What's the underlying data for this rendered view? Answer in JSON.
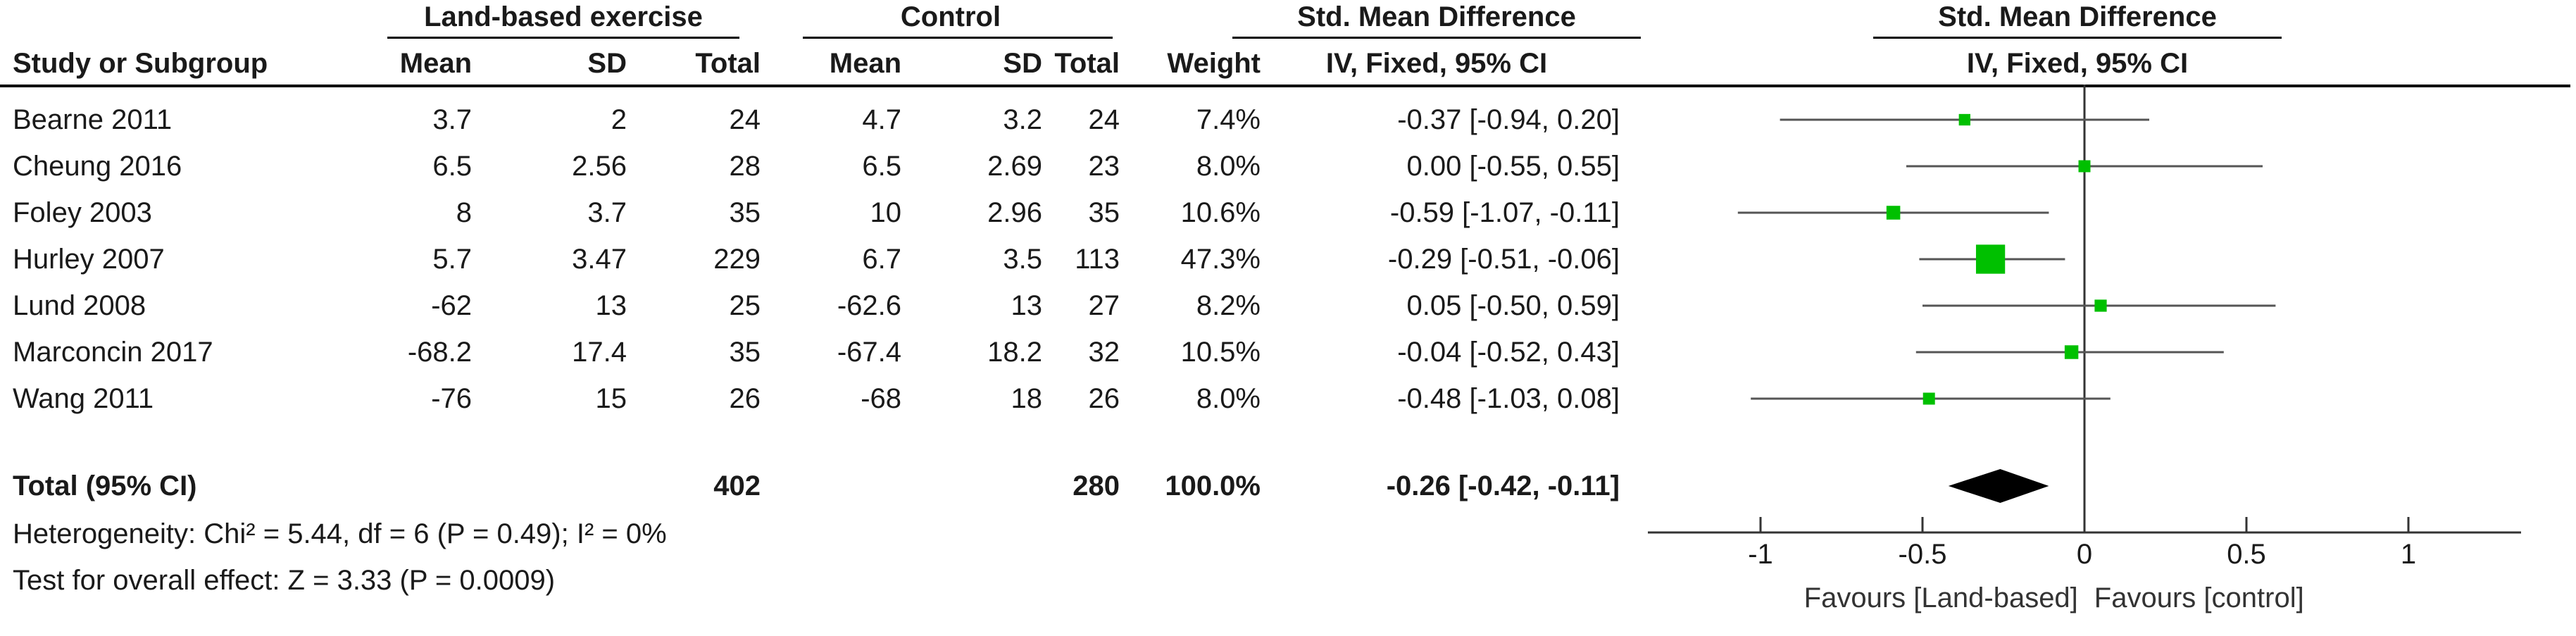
{
  "headers": {
    "exp_group": "Land-based exercise",
    "ctrl_group": "Control",
    "effect_left_title": "Std. Mean Difference",
    "effect_left_method": "IV, Fixed, 95% CI",
    "plot_title": "Std. Mean Difference",
    "plot_method": "IV, Fixed, 95% CI",
    "study": "Study or Subgroup",
    "mean": "Mean",
    "sd": "SD",
    "total": "Total",
    "weight": "Weight"
  },
  "studies": [
    {
      "name": "Bearne 2011",
      "exp_mean": "3.7",
      "exp_sd": "2",
      "exp_total": "24",
      "ctrl_mean": "4.7",
      "ctrl_sd": "3.2",
      "ctrl_total": "24",
      "weight": "7.4%",
      "ci_text": "-0.37 [-0.94, 0.20]"
    },
    {
      "name": "Cheung 2016",
      "exp_mean": "6.5",
      "exp_sd": "2.56",
      "exp_total": "28",
      "ctrl_mean": "6.5",
      "ctrl_sd": "2.69",
      "ctrl_total": "23",
      "weight": "8.0%",
      "ci_text": "0.00 [-0.55, 0.55]"
    },
    {
      "name": "Foley 2003",
      "exp_mean": "8",
      "exp_sd": "3.7",
      "exp_total": "35",
      "ctrl_mean": "10",
      "ctrl_sd": "2.96",
      "ctrl_total": "35",
      "weight": "10.6%",
      "ci_text": "-0.59 [-1.07, -0.11]"
    },
    {
      "name": "Hurley 2007",
      "exp_mean": "5.7",
      "exp_sd": "3.47",
      "exp_total": "229",
      "ctrl_mean": "6.7",
      "ctrl_sd": "3.5",
      "ctrl_total": "113",
      "weight": "47.3%",
      "ci_text": "-0.29 [-0.51, -0.06]"
    },
    {
      "name": "Lund 2008",
      "exp_mean": "-62",
      "exp_sd": "13",
      "exp_total": "25",
      "ctrl_mean": "-62.6",
      "ctrl_sd": "13",
      "ctrl_total": "27",
      "weight": "8.2%",
      "ci_text": "0.05 [-0.50, 0.59]"
    },
    {
      "name": "Marconcin 2017",
      "exp_mean": "-68.2",
      "exp_sd": "17.4",
      "exp_total": "35",
      "ctrl_mean": "-67.4",
      "ctrl_sd": "18.2",
      "ctrl_total": "32",
      "weight": "10.5%",
      "ci_text": "-0.04 [-0.52, 0.43]"
    },
    {
      "name": "Wang 2011",
      "exp_mean": "-76",
      "exp_sd": "15",
      "exp_total": "26",
      "ctrl_mean": "-68",
      "ctrl_sd": "18",
      "ctrl_total": "26",
      "weight": "8.0%",
      "ci_text": "-0.48 [-1.03, 0.08]"
    }
  ],
  "total_row": {
    "label": "Total (95% CI)",
    "exp_total": "402",
    "ctrl_total": "280",
    "weight": "100.0%",
    "ci_text": "-0.26 [-0.42, -0.11]"
  },
  "heterogeneity": "Heterogeneity: Chi² = 5.44, df = 6 (P = 0.49); I² = 0%",
  "overall_effect": "Test for overall effect: Z = 3.33 (P = 0.0009)",
  "favours_left": "Favours [Land-based]",
  "favours_right": "Favours [control]",
  "colors": {
    "marker": "#00c000",
    "line": "#555555",
    "axis": "#333333",
    "diamond": "#000000"
  },
  "chart_data": {
    "type": "forest",
    "title": "Std. Mean Difference",
    "subtitle": "IV, Fixed, 95% CI",
    "xlim": [
      -1.0,
      1.0
    ],
    "ticks": [
      -1,
      -0.5,
      0,
      0.5,
      1
    ],
    "tick_labels": [
      "-1",
      "-0.5",
      "0",
      "0.5",
      "1"
    ],
    "studies": [
      {
        "name": "Bearne 2011",
        "est": -0.37,
        "lo": -0.94,
        "hi": 0.2,
        "weight": 7.4
      },
      {
        "name": "Cheung 2016",
        "est": 0.0,
        "lo": -0.55,
        "hi": 0.55,
        "weight": 8.0
      },
      {
        "name": "Foley 2003",
        "est": -0.59,
        "lo": -1.07,
        "hi": -0.11,
        "weight": 10.6
      },
      {
        "name": "Hurley 2007",
        "est": -0.29,
        "lo": -0.51,
        "hi": -0.06,
        "weight": 47.3
      },
      {
        "name": "Lund 2008",
        "est": 0.05,
        "lo": -0.5,
        "hi": 0.59,
        "weight": 8.2
      },
      {
        "name": "Marconcin 2017",
        "est": -0.04,
        "lo": -0.52,
        "hi": 0.43,
        "weight": 10.5
      },
      {
        "name": "Wang 2011",
        "est": -0.48,
        "lo": -1.03,
        "hi": 0.08,
        "weight": 8.0
      }
    ],
    "pooled": {
      "est": -0.26,
      "lo": -0.42,
      "hi": -0.11
    }
  }
}
